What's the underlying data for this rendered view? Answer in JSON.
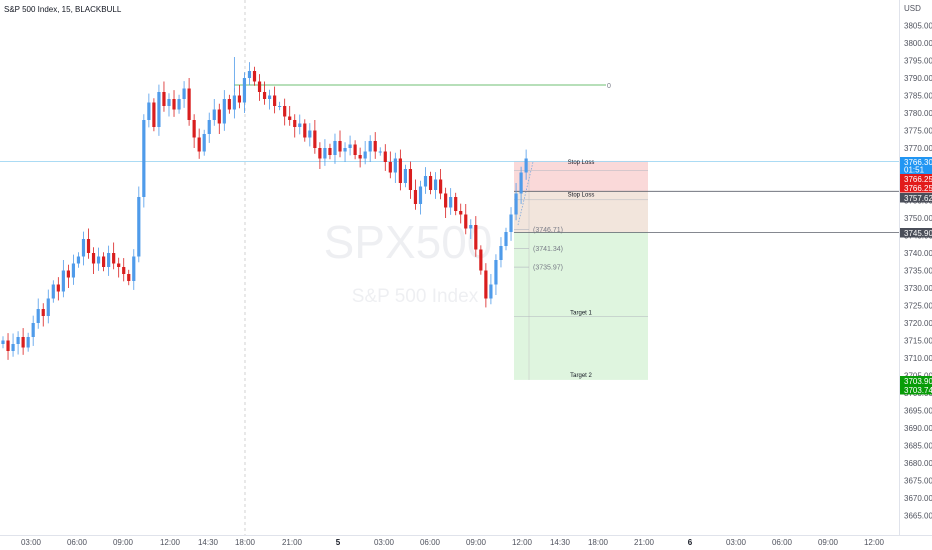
{
  "header": {
    "title": "S&P 500 Index, 15, BLACKBULL",
    "currency": "USD"
  },
  "watermark": {
    "symbol": "SPX500",
    "subtitle": "S&P 500 Index"
  },
  "colors": {
    "up": "#4f9bea",
    "down": "#d91e1e",
    "stop_zone": "#f8cccc",
    "target_zone": "#d4f2d4",
    "green_badge": "#089c08",
    "red_badge": "#e21b1b",
    "blue_badge": "#2196f3",
    "dark_badge": "#4a4e59"
  },
  "chart_data": {
    "type": "candlestick",
    "ylim": [
      3661,
      3810
    ],
    "y_ticks": [
      3805,
      3800,
      3795,
      3790,
      3785,
      3780,
      3775,
      3770,
      3765,
      3760,
      3755,
      3750,
      3745,
      3740,
      3735,
      3730,
      3725,
      3720,
      3715,
      3710,
      3705,
      3700,
      3695,
      3690,
      3685,
      3680,
      3675,
      3670,
      3665
    ],
    "x_ticks": [
      {
        "label": "03:00",
        "bold": false
      },
      {
        "label": "06:00",
        "bold": false
      },
      {
        "label": "09:00",
        "bold": false
      },
      {
        "label": "12:00",
        "bold": false
      },
      {
        "label": "14:30",
        "bold": false
      },
      {
        "label": "18:00",
        "bold": false
      },
      {
        "label": "21:00",
        "bold": false
      },
      {
        "label": "5",
        "bold": true
      },
      {
        "label": "03:00",
        "bold": false
      },
      {
        "label": "06:00",
        "bold": false
      },
      {
        "label": "09:00",
        "bold": false
      },
      {
        "label": "12:00",
        "bold": false
      },
      {
        "label": "14:30",
        "bold": false
      },
      {
        "label": "18:00",
        "bold": false
      },
      {
        "label": "21:00",
        "bold": false
      },
      {
        "label": "6",
        "bold": true
      },
      {
        "label": "03:00",
        "bold": false
      },
      {
        "label": "06:00",
        "bold": false
      },
      {
        "label": "09:00",
        "bold": false
      },
      {
        "label": "12:00",
        "bold": false
      }
    ],
    "close_path": [
      3715,
      3712,
      3714,
      3716,
      3713,
      3716,
      3720,
      3724,
      3722,
      3727,
      3731,
      3729,
      3735,
      3733,
      3737,
      3739,
      3744,
      3740,
      3737,
      3739,
      3736,
      3740,
      3737,
      3736,
      3734,
      3732,
      3739,
      3756,
      3778,
      3783,
      3776,
      3786,
      3782,
      3784,
      3781,
      3784,
      3787,
      3778,
      3773,
      3769,
      3774,
      3778,
      3781,
      3777,
      3784,
      3781,
      3785,
      3783,
      3790,
      3792,
      3789,
      3786,
      3784,
      3785,
      3782,
      3782,
      3779,
      3778,
      3776,
      3777,
      3773,
      3775,
      3770,
      3767,
      3770,
      3768,
      3772,
      3769,
      3770,
      3771,
      3768,
      3767,
      3769,
      3772,
      3769,
      3769,
      3766,
      3763,
      3767,
      3760,
      3764,
      3758,
      3754,
      3759,
      3762,
      3758,
      3761,
      3757,
      3753,
      3756,
      3752,
      3751,
      3747,
      3748,
      3741,
      3735,
      3727,
      3731,
      3738,
      3742,
      3746,
      3751,
      3757,
      3763,
      3767
    ],
    "spike_high": 3796,
    "trade_setup": {
      "stop_loss_upper": 3766.3,
      "stop_loss_lower": 3757.62,
      "entry": 3745.9,
      "target_1": 3721.86,
      "target_2": 3703.74,
      "levels_grey": [
        3746.71,
        3741.34,
        3735.97
      ],
      "resistance": 3788.0
    },
    "price_badges": [
      {
        "value": "3766.30",
        "sub": "01:51",
        "color": "blue"
      },
      {
        "value": "3766.25",
        "color": "red"
      },
      {
        "value": "3766.25",
        "color": "red"
      },
      {
        "value": "3757.62",
        "color": "dark"
      },
      {
        "value": "3745.90",
        "color": "dark"
      },
      {
        "value": "3703.90",
        "color": "green"
      },
      {
        "value": "3703.74",
        "color": "green"
      }
    ]
  },
  "labels": {
    "stop_loss_1": "Stop Loss",
    "stop_loss_2": "Stop Loss",
    "target_1": "Target 1",
    "target_2": "Target 2",
    "grey_1": "(3746.71)",
    "grey_2": "(3741.34)",
    "grey_3": "(3735.97)",
    "zero_mark": "0"
  }
}
